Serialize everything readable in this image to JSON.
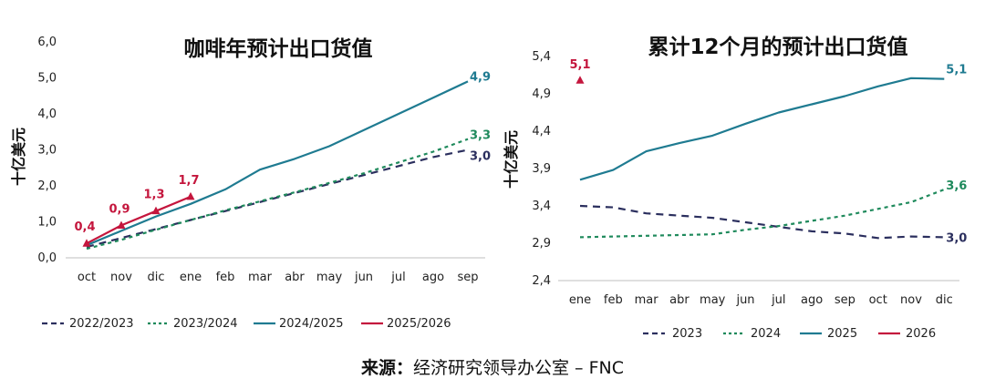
{
  "source": {
    "label": "来源：",
    "text": "经济研究领导办公室 – FNC"
  },
  "chart_data": [
    {
      "type": "line",
      "title": "咖啡年预计出口货值",
      "ylabel": "十亿美元",
      "xlabel": "",
      "categories": [
        "oct",
        "nov",
        "dic",
        "ene",
        "feb",
        "mar",
        "abr",
        "may",
        "jun",
        "jul",
        "ago",
        "sep"
      ],
      "ylim": [
        0,
        6
      ],
      "yticks": [
        "0,0",
        "1,0",
        "2,0",
        "3,0",
        "4,0",
        "5,0",
        "6,0"
      ],
      "legend_position": "bottom",
      "grid": false,
      "series": [
        {
          "name": "2022/2023",
          "color": "#2b2f5e",
          "dash": "8,6",
          "values": [
            0.3,
            0.55,
            0.8,
            1.05,
            1.3,
            1.55,
            1.8,
            2.05,
            2.3,
            2.55,
            2.8,
            3.0
          ],
          "end_label": "3,0"
        },
        {
          "name": "2023/2024",
          "color": "#1f8a5c",
          "dash": "4,4",
          "values": [
            0.25,
            0.5,
            0.78,
            1.05,
            1.32,
            1.57,
            1.82,
            2.08,
            2.35,
            2.65,
            2.95,
            3.3
          ],
          "end_label": "3,3"
        },
        {
          "name": "2024/2025",
          "color": "#1f7b91",
          "dash": "",
          "values": [
            0.35,
            0.75,
            1.15,
            1.5,
            1.9,
            2.45,
            2.75,
            3.1,
            3.55,
            4.0,
            4.45,
            4.9
          ],
          "end_label": "4,9"
        },
        {
          "name": "2025/2026",
          "color": "#c4163d",
          "dash": "",
          "values": [
            0.4,
            0.9,
            1.3,
            1.7,
            null,
            null,
            null,
            null,
            null,
            null,
            null,
            null
          ],
          "point_labels": [
            "0,4",
            "0,9",
            "1,3",
            "1,7"
          ]
        }
      ]
    },
    {
      "type": "line",
      "title": "累计12个月的预计出口货值",
      "ylabel": "十亿美元",
      "xlabel": "",
      "categories": [
        "ene",
        "feb",
        "mar",
        "abr",
        "may",
        "jun",
        "jul",
        "ago",
        "sep",
        "oct",
        "nov",
        "dic"
      ],
      "ylim": [
        2.4,
        5.4
      ],
      "yticks": [
        "2,4",
        "2,9",
        "3,4",
        "3,9",
        "4,4",
        "4,9",
        "5,4"
      ],
      "legend_position": "bottom",
      "grid": false,
      "series": [
        {
          "name": "2023",
          "color": "#2b2f5e",
          "dash": "8,6",
          "values": [
            3.4,
            3.38,
            3.3,
            3.27,
            3.24,
            3.18,
            3.12,
            3.06,
            3.03,
            2.97,
            2.99,
            2.98
          ],
          "end_label": "3,0"
        },
        {
          "name": "2024",
          "color": "#1f8a5c",
          "dash": "4,4",
          "values": [
            2.98,
            2.99,
            3.0,
            3.01,
            3.02,
            3.08,
            3.13,
            3.2,
            3.27,
            3.36,
            3.45,
            3.62
          ],
          "end_label": "3,6"
        },
        {
          "name": "2025",
          "color": "#1f7b91",
          "dash": "",
          "values": [
            3.75,
            3.88,
            4.13,
            4.24,
            4.34,
            4.5,
            4.65,
            4.76,
            4.87,
            5.0,
            5.11,
            5.1
          ],
          "end_label": "5,1"
        },
        {
          "name": "2026",
          "color": "#c4163d",
          "dash": "",
          "values": [
            5.08,
            null,
            null,
            null,
            null,
            null,
            null,
            null,
            null,
            null,
            null,
            null
          ],
          "point_labels": [
            "5,1"
          ],
          "marker": "triangle"
        }
      ]
    }
  ]
}
